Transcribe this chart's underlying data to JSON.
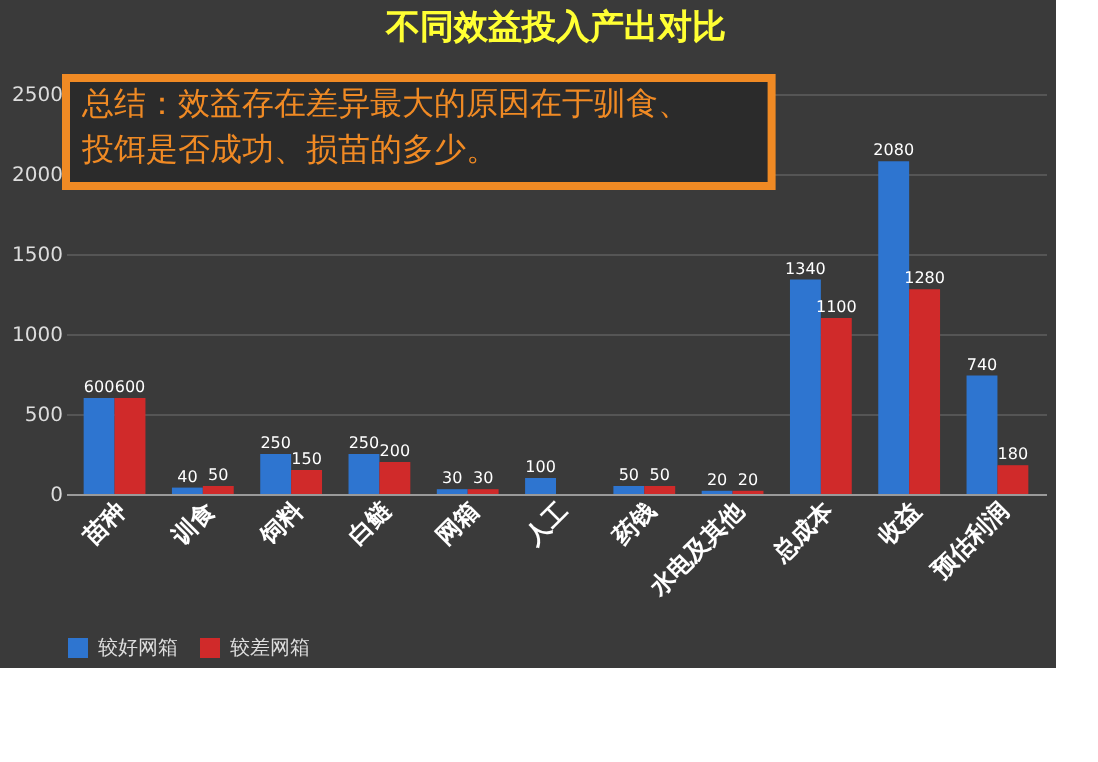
{
  "chart_data": {
    "type": "bar",
    "title": "不同效益投入产出对比",
    "annotations": [
      "总结：效益存在差异最大的原因在于驯食、投饵是否成功、损苗的多少。"
    ],
    "categories": [
      "苗种",
      "训食",
      "饲料",
      "白鲢",
      "网箱",
      "人工",
      "药钱",
      "水电及其他",
      "总成本",
      "收益",
      "预估利润"
    ],
    "series": [
      {
        "name": "较好网箱",
        "color": "#2e75d0",
        "values": [
          600,
          40,
          250,
          250,
          30,
          100,
          50,
          20,
          1340,
          2080,
          740
        ]
      },
      {
        "name": "较差网箱",
        "color": "#d02a2a",
        "values": [
          600,
          50,
          150,
          200,
          30,
          null,
          50,
          20,
          1100,
          1280,
          180
        ]
      }
    ],
    "ylim": [
      0,
      2500
    ],
    "yticks": [
      0,
      500,
      1000,
      1500,
      2000,
      2500
    ],
    "grid": "y",
    "legend": "bottom",
    "data_labels": true
  }
}
